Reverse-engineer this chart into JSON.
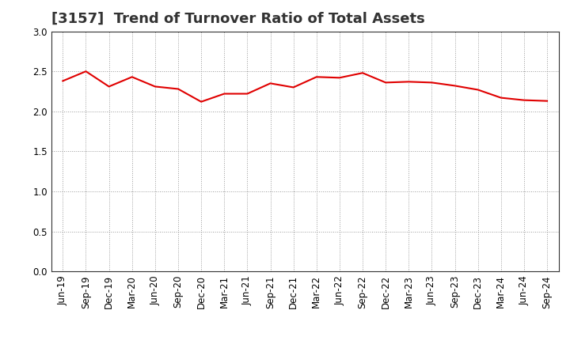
{
  "title": "[3157]  Trend of Turnover Ratio of Total Assets",
  "x_labels": [
    "Jun-19",
    "Sep-19",
    "Dec-19",
    "Mar-20",
    "Jun-20",
    "Sep-20",
    "Dec-20",
    "Mar-21",
    "Jun-21",
    "Sep-21",
    "Dec-21",
    "Mar-22",
    "Jun-22",
    "Sep-22",
    "Dec-22",
    "Mar-23",
    "Jun-23",
    "Sep-23",
    "Dec-23",
    "Mar-24",
    "Jun-24",
    "Sep-24"
  ],
  "y_values": [
    2.38,
    2.5,
    2.31,
    2.43,
    2.31,
    2.28,
    2.12,
    2.22,
    2.22,
    2.35,
    2.3,
    2.43,
    2.42,
    2.48,
    2.36,
    2.37,
    2.36,
    2.32,
    2.27,
    2.17,
    2.14,
    2.13
  ],
  "line_color": "#e00000",
  "ylim": [
    0.0,
    3.0
  ],
  "yticks": [
    0.0,
    0.5,
    1.0,
    1.5,
    2.0,
    2.5,
    3.0
  ],
  "background_color": "#ffffff",
  "grid_color": "#999999",
  "title_fontsize": 13,
  "tick_fontsize": 8.5,
  "line_width": 1.5,
  "fig_width": 7.2,
  "fig_height": 4.4,
  "fig_dpi": 100
}
